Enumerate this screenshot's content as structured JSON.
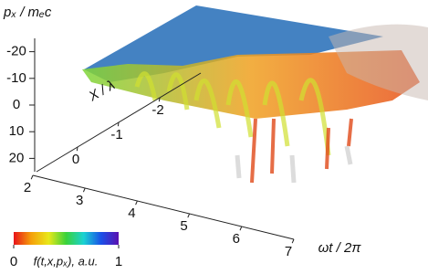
{
  "chart_data": {
    "type": "volume3d",
    "x_label": "ωt / 2π",
    "xlim": [
      2,
      7
    ],
    "xticks": [
      2,
      3,
      4,
      5,
      6,
      7
    ],
    "y_label": "X / λ",
    "ylim": [
      1,
      -3
    ],
    "yticks": [
      0,
      -1,
      -2
    ],
    "z_label": "pₓ / mₑc",
    "zlim": [
      -25,
      25
    ],
    "zticks": [
      -20,
      -10,
      0,
      10,
      20
    ],
    "colorbar": {
      "label": "f(t,x,pₓ), a.u.",
      "clim": [
        0,
        1
      ],
      "ticks": [
        0,
        1
      ],
      "colors": [
        "#e8141a",
        "#f5a00a",
        "#e8e81a",
        "#3ad23a",
        "#1ad2d2",
        "#1a50e8",
        "#5a10b0"
      ]
    }
  }
}
